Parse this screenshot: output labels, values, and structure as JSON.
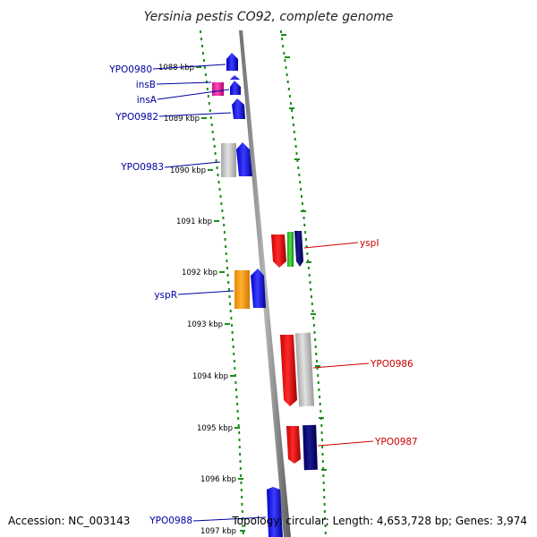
{
  "title": "Yersinia pestis CO92, complete genome",
  "accession_text": "Accession: NC_003143",
  "topology_text": "Topology: circular; Length: 4,653,728 bp; Genes: 3,974",
  "colors": {
    "label_blue": "#0000a0",
    "label_red": "#cc0000",
    "tick_green": "#1a8c1a",
    "backbone": "#8c8c8c"
  },
  "scale_labels": [
    "1088 kbp",
    "1089 kbp",
    "1090 kbp",
    "1091 kbp",
    "1092 kbp",
    "1093 kbp",
    "1094 kbp",
    "1095 kbp",
    "1096 kbp",
    "1097 kbp"
  ],
  "gene_labels": [
    {
      "text": "YPO0980",
      "strand": "left"
    },
    {
      "text": "insB",
      "strand": "left"
    },
    {
      "text": "insA",
      "strand": "left"
    },
    {
      "text": "YPO0982",
      "strand": "left"
    },
    {
      "text": "YPO0983",
      "strand": "left"
    },
    {
      "text": "yspR",
      "strand": "left"
    },
    {
      "text": "YPO0988",
      "strand": "left"
    },
    {
      "text": "yspI",
      "strand": "right"
    },
    {
      "text": "YPO0986",
      "strand": "right"
    },
    {
      "text": "YPO0987",
      "strand": "right"
    }
  ]
}
